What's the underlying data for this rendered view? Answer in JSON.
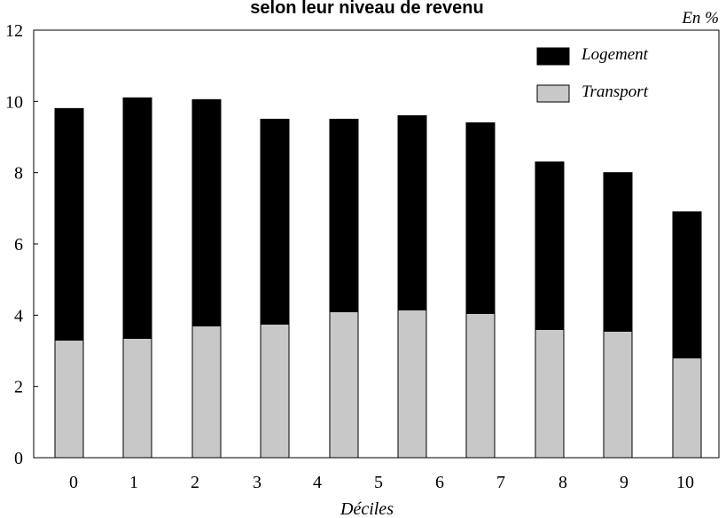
{
  "chart_data": {
    "type": "bar",
    "stacked": true,
    "title": "selon leur niveau de revenu",
    "unit_label": "En %",
    "xlabel": "Déciles",
    "ylabel": "",
    "ylim": [
      0,
      12
    ],
    "yticks": [
      "0",
      "2",
      "4",
      "6",
      "8",
      "10",
      "12"
    ],
    "categories": [
      "0",
      "1",
      "2",
      "3",
      "4",
      "5",
      "6",
      "7",
      "8",
      "9",
      "10"
    ],
    "series": [
      {
        "name": "Transport",
        "color": "#c8c8c8",
        "values": [
          3.3,
          3.35,
          3.7,
          3.75,
          4.1,
          4.15,
          4.05,
          3.6,
          3.55,
          2.8,
          0
        ]
      },
      {
        "name": "Logement",
        "color": "#000000",
        "values": [
          6.5,
          6.75,
          6.35,
          5.75,
          5.4,
          5.45,
          5.35,
          4.7,
          4.45,
          4.1,
          0
        ]
      }
    ],
    "legend_position": "top-right",
    "legend_order": [
      "Logement",
      "Transport"
    ],
    "grid": false
  }
}
